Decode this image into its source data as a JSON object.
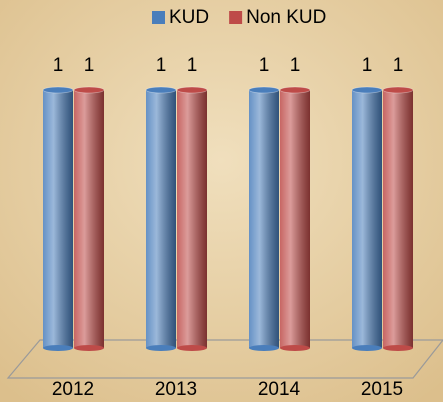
{
  "chart_data": {
    "type": "bar",
    "categories": [
      "2012",
      "2013",
      "2014",
      "2015"
    ],
    "series": [
      {
        "name": "KUD",
        "color": "#4a7ebb",
        "values": [
          1,
          1,
          1,
          1
        ]
      },
      {
        "name": "Non KUD",
        "color": "#be4b48",
        "values": [
          1,
          1,
          1,
          1
        ]
      }
    ],
    "legend": "top"
  }
}
